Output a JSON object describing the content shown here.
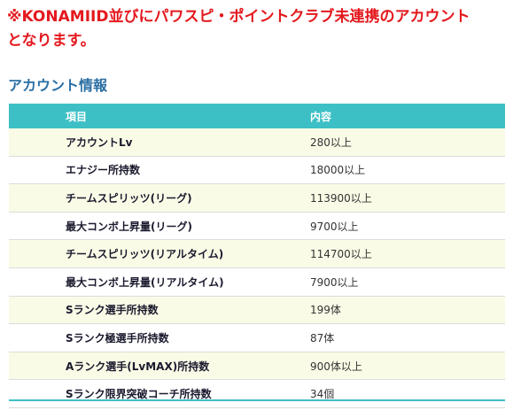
{
  "notice": {
    "line1": "※KONAMIID並びにパワスピ・ポイントクラブ未連携のアカウント",
    "line2": "となります。"
  },
  "section_title": "アカウント情報",
  "colors": {
    "accent": "#3dc0c5",
    "notice": "#e4191e",
    "title": "#2b6fa4",
    "stripe": "#fafbe6"
  },
  "table": {
    "headers": [
      "項目",
      "内容"
    ],
    "rows": [
      {
        "item": "アカウントLv",
        "value": "280以上"
      },
      {
        "item": "エナジー所持数",
        "value": "18000以上"
      },
      {
        "item": "チームスピリッツ(リーグ)",
        "value": "113900以上"
      },
      {
        "item": "最大コンボ上昇量(リーグ)",
        "value": "9700以上"
      },
      {
        "item": "チームスピリッツ(リアルタイム)",
        "value": "114700以上"
      },
      {
        "item": "最大コンボ上昇量(リアルタイム)",
        "value": "7900以上"
      },
      {
        "item": "Sランク選手所持数",
        "value": "199体"
      },
      {
        "item": "Sランク極選手所持数",
        "value": "87体"
      },
      {
        "item": "Aランク選手(LvMAX)所持数",
        "value": "900体以上"
      },
      {
        "item": "Sランク限界突破コーチ所持数",
        "value": "34個"
      }
    ]
  }
}
